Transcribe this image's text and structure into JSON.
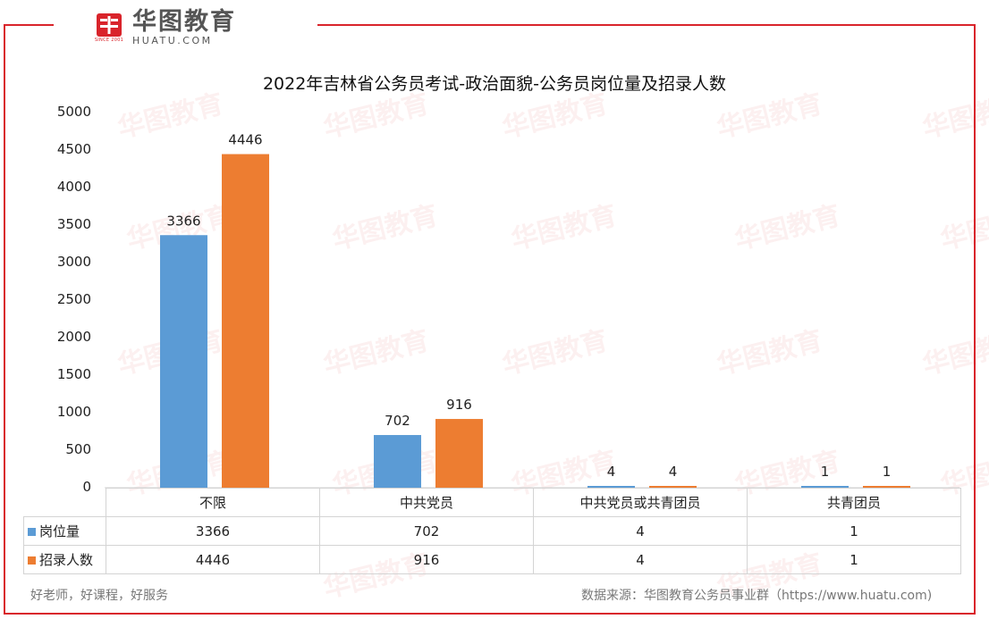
{
  "brand": {
    "logo_cn": "华图教育",
    "logo_en": "HUATU.COM",
    "since": "SINCE 2001",
    "watermark_text": "华图教育",
    "color": "#d9242b"
  },
  "chart_data": {
    "type": "bar",
    "title": "2022年吉林省公务员考试-政治面貌-公务员岗位量及招录人数",
    "categories": [
      "不限",
      "中共党员",
      "中共党员或共青团员",
      "共青团员"
    ],
    "series": [
      {
        "name": "岗位量",
        "values": [
          3366,
          702,
          4,
          1
        ],
        "color": "#5b9bd5"
      },
      {
        "name": "招录人数",
        "values": [
          4446,
          916,
          4,
          1
        ],
        "color": "#ed7d31"
      }
    ],
    "ylim": [
      0,
      5000
    ],
    "yticks": [
      "0",
      "500",
      "1000",
      "1500",
      "2000",
      "2500",
      "3000",
      "3500",
      "4000",
      "4500",
      "5000"
    ],
    "grid": false,
    "legend": "data-table"
  },
  "footer": {
    "left": "好老师，好课程，好服务",
    "right": "数据来源：华图教育公务员事业群（https://www.huatu.com)"
  }
}
